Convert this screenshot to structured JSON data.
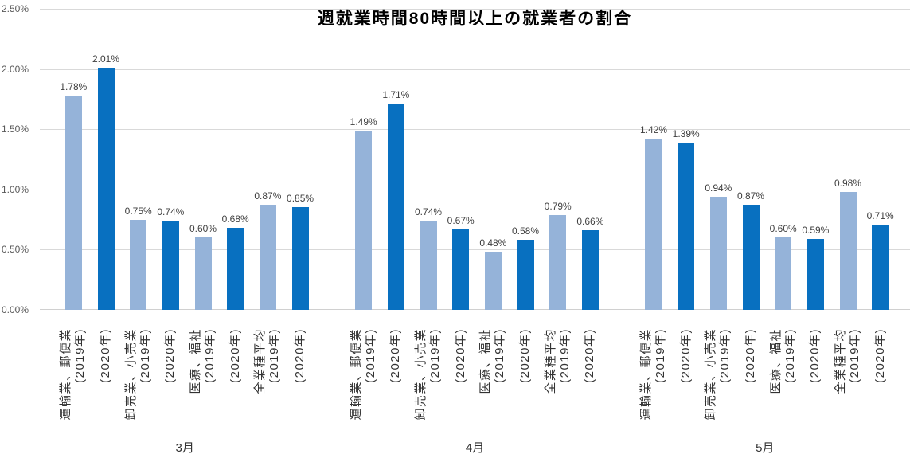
{
  "chart_data": {
    "type": "bar",
    "title": "週就業時間80時間以上の就業者の割合",
    "xlabel": "",
    "ylabel": "",
    "ylim": [
      0,
      2.5
    ],
    "grid": true,
    "legend_position": "none",
    "y_axis": {
      "tick_labels": [
        "2.50%",
        "2.00%",
        "1.50%",
        "1.00%",
        "0.50%",
        "0.00%"
      ]
    },
    "series_labels": {
      "s2019": "(2019年)",
      "s2020": "(2020年)"
    },
    "value_suffix": "%",
    "groups": [
      {
        "month": "3月",
        "categories": [
          {
            "name": "運輸業、郵便業",
            "v2019": 1.78,
            "v2020": 2.01
          },
          {
            "name": "卸売業、小売業",
            "v2019": 0.75,
            "v2020": 0.74
          },
          {
            "name": "医療、福祉",
            "v2019": 0.6,
            "v2020": 0.68
          },
          {
            "name": "全業種平均",
            "v2019": 0.87,
            "v2020": 0.85
          }
        ]
      },
      {
        "month": "4月",
        "categories": [
          {
            "name": "運輸業、郵便業",
            "v2019": 1.49,
            "v2020": 1.71
          },
          {
            "name": "卸売業、小売業",
            "v2019": 0.74,
            "v2020": 0.67
          },
          {
            "name": "医療、福祉",
            "v2019": 0.48,
            "v2020": 0.58
          },
          {
            "name": "全業種平均",
            "v2019": 0.79,
            "v2020": 0.66
          }
        ]
      },
      {
        "month": "5月",
        "categories": [
          {
            "name": "運輸業、郵便業",
            "v2019": 1.42,
            "v2020": 1.39
          },
          {
            "name": "卸売業、小売業",
            "v2019": 0.94,
            "v2020": 0.87
          },
          {
            "name": "医療、福祉",
            "v2019": 0.6,
            "v2020": 0.59
          },
          {
            "name": "全業種平均",
            "v2019": 0.98,
            "v2020": 0.71
          }
        ]
      }
    ],
    "colors": {
      "bar_2019": "#95B3D9",
      "bar_2020": "#0870C0",
      "gridline": "#D9D9D9",
      "axis_line": "#D0D0D0",
      "y_tick_text": "#595959",
      "value_label_text": "#404040",
      "x_tick_text": "#333333",
      "title_text": "#000000"
    }
  }
}
